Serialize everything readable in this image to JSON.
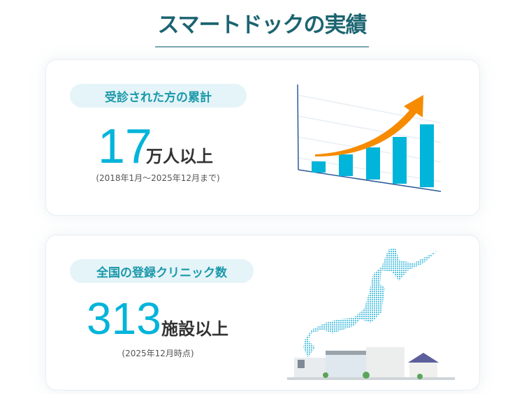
{
  "title": "スマートドックの実績",
  "cards": [
    {
      "label": "受診された方の累計",
      "number": "17",
      "unit": "万人以上",
      "note": "(2018年1月～2025年12月まで)",
      "illustration": "rising-bar-chart-with-arrow"
    },
    {
      "label": "全国の登録クリニック数",
      "number": "313",
      "unit": "施設以上",
      "note": "(2025年12月時点)",
      "illustration": "japan-map-with-clinic-buildings"
    }
  ],
  "colors": {
    "title": "#1b6470",
    "accent": "#00b4da",
    "pill_bg": "#e5f4f8",
    "pill_text": "#1a98aa",
    "arrow": "#f78b00"
  }
}
